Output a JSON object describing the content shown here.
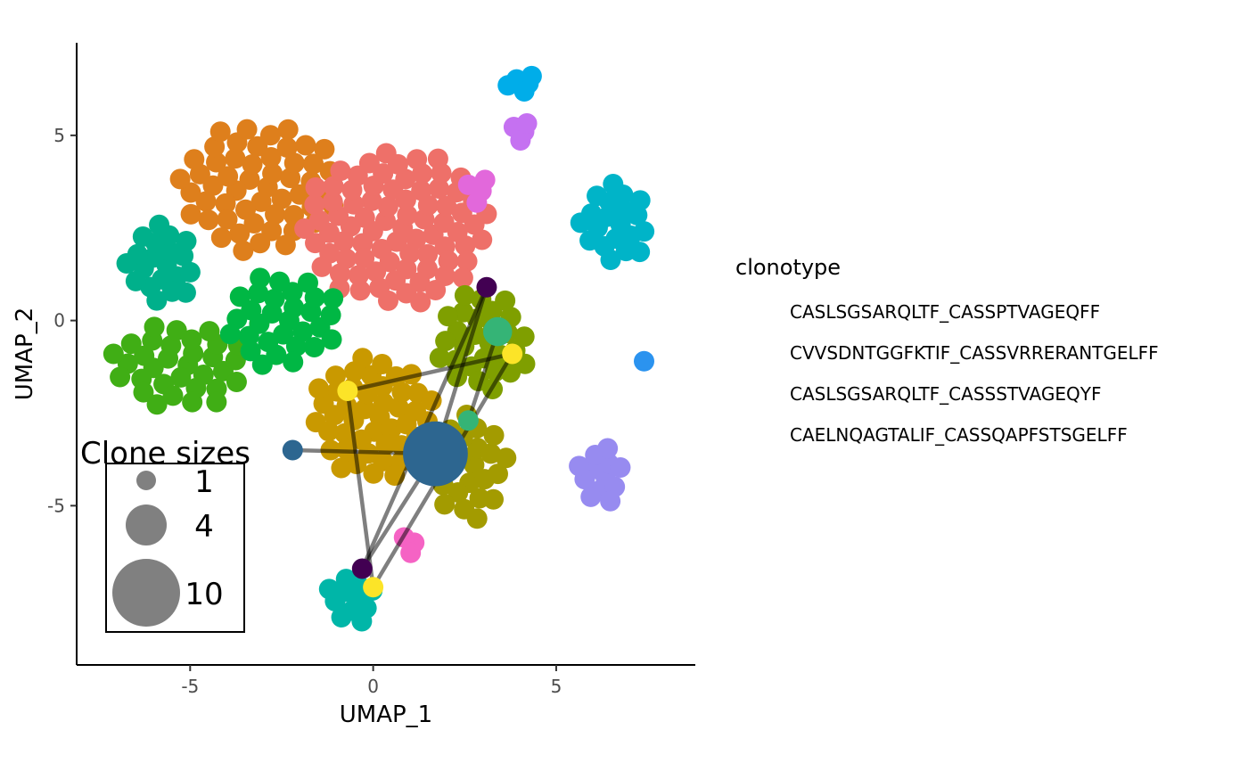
{
  "chart_data": {
    "type": "scatter",
    "xlabel": "UMAP_1",
    "ylabel": "UMAP_2",
    "xlim": [
      -8.1,
      8.8
    ],
    "ylim": [
      -9.3,
      7.5
    ],
    "x_ticks": [
      -5,
      0,
      5
    ],
    "y_ticks": [
      -5,
      0,
      5
    ],
    "x_tick_labels": [
      "-5",
      "0",
      "5"
    ],
    "y_tick_labels": [
      "-5",
      "0",
      "5"
    ],
    "grid": false,
    "legend_clonotype": {
      "title": "clonotype",
      "position": "right",
      "entries": [
        "CASLSGSARQLTF_CASSPTVAGEQFF",
        "CVVSDNTGGFKTIF_CASSVRRERANTGELFF",
        "CASLSGSARQLTF_CASSSTVAGEQYF",
        "CAELNQAGTALIF_CASSQAPFSTSGELFF"
      ]
    },
    "legend_size": {
      "title": "Clone sizes",
      "position": "bottom-left",
      "entries": [
        {
          "label": "1",
          "size": 1
        },
        {
          "label": "4",
          "size": 4
        },
        {
          "label": "10",
          "size": 10
        }
      ]
    },
    "clusters": [
      {
        "color": "#DE7F1C",
        "center": [
          -3.1,
          3.6
        ],
        "count": 52,
        "spread": [
          2.2,
          1.8
        ]
      },
      {
        "color": "#EE7069",
        "center": [
          0.6,
          2.5
        ],
        "count": 80,
        "spread": [
          2.6,
          2.1
        ]
      },
      {
        "color": "#00B08B",
        "center": [
          -5.8,
          1.5
        ],
        "count": 20,
        "spread": [
          1.0,
          1.1
        ]
      },
      {
        "color": "#40AE15",
        "center": [
          -5.3,
          -1.2
        ],
        "count": 32,
        "spread": [
          1.9,
          1.2
        ]
      },
      {
        "color": "#00B744",
        "center": [
          -2.5,
          0.0
        ],
        "count": 30,
        "spread": [
          1.6,
          1.3
        ]
      },
      {
        "color": "#C99900",
        "center": [
          0.0,
          -2.6
        ],
        "count": 45,
        "spread": [
          1.7,
          1.7
        ]
      },
      {
        "color": "#7F9F00",
        "center": [
          3.0,
          -0.6
        ],
        "count": 28,
        "spread": [
          1.3,
          1.4
        ]
      },
      {
        "color": "#A39B00",
        "center": [
          2.6,
          -3.9
        ],
        "count": 24,
        "spread": [
          1.1,
          1.5
        ]
      },
      {
        "color": "#00ADE9",
        "center": [
          4.1,
          6.4
        ],
        "count": 5,
        "spread": [
          0.45,
          0.3
        ]
      },
      {
        "color": "#C571F1",
        "center": [
          4.0,
          5.1
        ],
        "count": 4,
        "spread": [
          0.35,
          0.3
        ]
      },
      {
        "color": "#E268DB",
        "center": [
          2.8,
          3.5
        ],
        "count": 4,
        "spread": [
          0.45,
          0.4
        ]
      },
      {
        "color": "#00B4C8",
        "center": [
          6.6,
          2.6
        ],
        "count": 20,
        "spread": [
          1.0,
          1.1
        ]
      },
      {
        "color": "#2B93EF",
        "center": [
          7.4,
          -1.1
        ],
        "count": 1,
        "spread": [
          0.0,
          0.0
        ]
      },
      {
        "color": "#978BF0",
        "center": [
          6.2,
          -4.2
        ],
        "count": 12,
        "spread": [
          0.7,
          0.8
        ]
      },
      {
        "color": "#F563C4",
        "center": [
          1.0,
          -6.0
        ],
        "count": 3,
        "spread": [
          0.3,
          0.3
        ]
      },
      {
        "color": "#00B6A8",
        "center": [
          -0.6,
          -7.5
        ],
        "count": 11,
        "spread": [
          0.7,
          0.7
        ]
      }
    ],
    "highlighted_clones": [
      {
        "color": "#2D6690",
        "points": [
          [
            1.7,
            -3.6,
            10
          ],
          [
            -2.2,
            -3.5,
            1
          ]
        ]
      },
      {
        "color": "#35B476",
        "points": [
          [
            3.4,
            -0.3,
            2
          ],
          [
            2.6,
            -2.7,
            1
          ]
        ]
      },
      {
        "color": "#FCE428",
        "points": [
          [
            -0.7,
            -1.9,
            1
          ],
          [
            3.8,
            -0.9,
            1
          ],
          [
            0.0,
            -7.2,
            1
          ]
        ]
      },
      {
        "color": "#420052",
        "points": [
          [
            3.1,
            0.9,
            1
          ],
          [
            -0.3,
            -6.7,
            1
          ]
        ]
      }
    ],
    "connections": [
      [
        -2.2,
        -3.5,
        1.7,
        -3.6
      ],
      [
        1.7,
        -3.6,
        -0.3,
        -6.7
      ],
      [
        -0.3,
        -6.7,
        3.1,
        0.9
      ],
      [
        3.1,
        0.9,
        1.7,
        -3.6
      ],
      [
        -0.7,
        -1.9,
        3.8,
        -0.9
      ],
      [
        3.8,
        -0.9,
        0.0,
        -7.2
      ],
      [
        0.0,
        -7.2,
        -0.7,
        -1.9
      ],
      [
        3.4,
        -0.3,
        2.6,
        -2.7
      ]
    ]
  }
}
